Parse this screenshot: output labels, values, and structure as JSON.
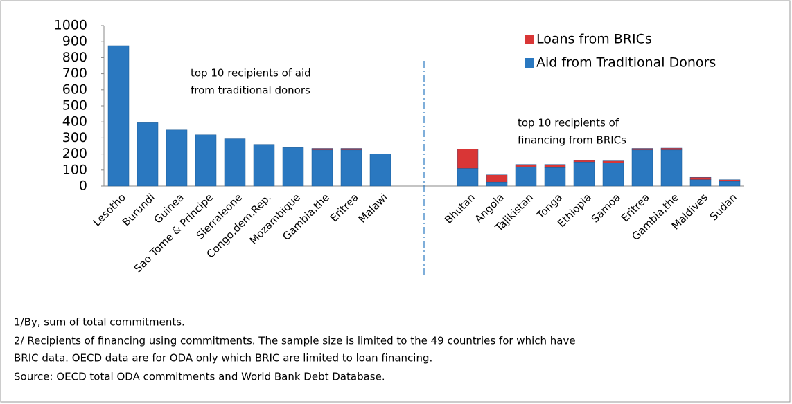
{
  "chart_data": {
    "type": "stacked_bar",
    "categories": [
      "Lesotho",
      "Burundi",
      "Guinea",
      "Sao Tome & Principe",
      "Sierraleone",
      "Congo,dem.Rep.",
      "Mozambique",
      "Gambia,the",
      "Eritrea",
      "Malawi",
      null,
      null,
      "Bhutan",
      "Angola",
      "Tajikistan",
      "Tonga",
      "Ethiopia",
      "Samoa",
      "Eritrea",
      "Gambia,the",
      "Maldives",
      "Sudan"
    ],
    "series": [
      {
        "name": "Aid from Traditional Donors",
        "color": "#2a78c0",
        "values": [
          875,
          395,
          350,
          320,
          295,
          260,
          240,
          225,
          225,
          200,
          null,
          null,
          110,
          25,
          120,
          115,
          150,
          145,
          225,
          225,
          40,
          30
        ]
      },
      {
        "name": "Loans from BRICs",
        "color": "#d93636",
        "values": [
          0,
          0,
          0,
          0,
          0,
          0,
          0,
          10,
          10,
          0,
          null,
          null,
          120,
          45,
          15,
          20,
          10,
          12,
          10,
          12,
          15,
          10
        ]
      }
    ],
    "ylim": [
      0,
      1000
    ],
    "yticks": [
      0,
      100,
      200,
      300,
      400,
      500,
      600,
      700,
      800,
      900,
      1000
    ],
    "grid": false,
    "annotations": [
      "top 10 recipients of aid",
      "from traditional donors",
      "top 10 recipients of",
      "financing from BRICs"
    ],
    "notes": [
      "1/By, sum of total commitments.",
      "2/ Recipients of financing using commitments. The sample size is limited to the 49 countries for which have",
      "BRIC data. OECD data are for ODA only which BRIC are limited to loan financing.",
      "Source: OECD total ODA commitments and World Bank Debt Database."
    ]
  }
}
